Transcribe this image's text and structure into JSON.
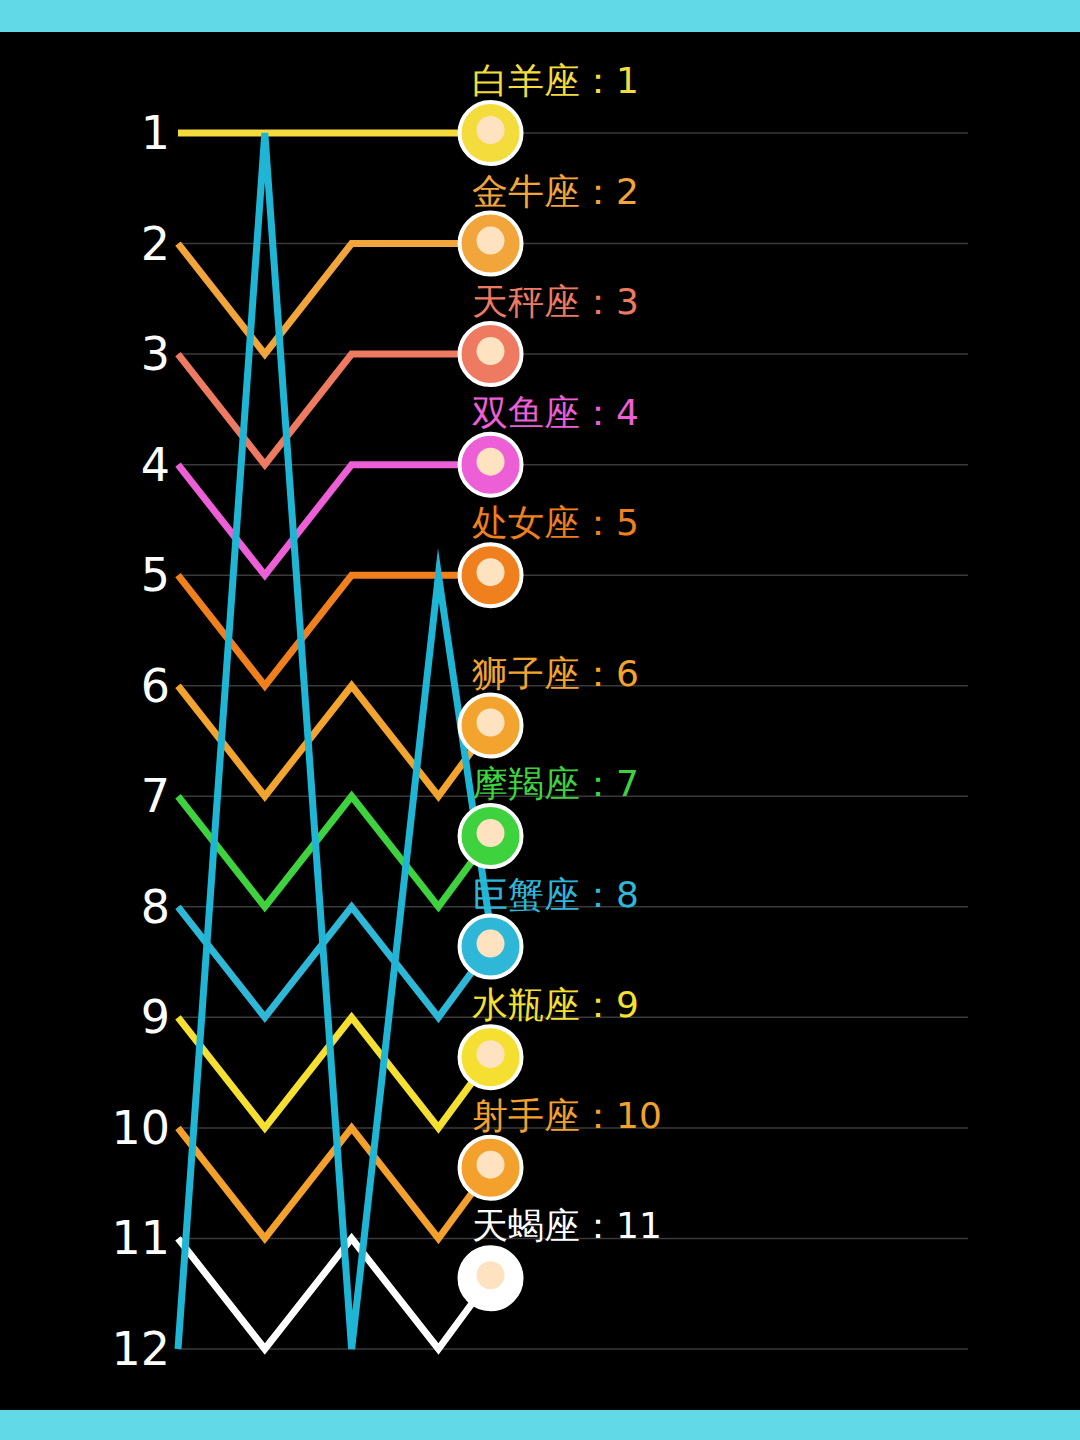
{
  "chart_data": {
    "type": "line",
    "x": [
      0,
      1,
      2,
      3,
      3.6
    ],
    "xlim": [
      0,
      9.1
    ],
    "ylim": [
      12,
      1
    ],
    "yticks": [
      1,
      2,
      3,
      4,
      5,
      6,
      7,
      8,
      9,
      10,
      11,
      12
    ],
    "grid": true,
    "tick_labels": "y",
    "series": [
      {
        "name": "白羊座：1",
        "color": "#f3dc3c",
        "values": [
          1,
          1,
          1,
          1,
          1
        ]
      },
      {
        "name": "金牛座：2",
        "color": "#f2a53a",
        "values": [
          2,
          3,
          2,
          2,
          2
        ]
      },
      {
        "name": "天秤座：3",
        "color": "#ef7a62",
        "values": [
          3,
          4,
          3,
          3,
          3
        ]
      },
      {
        "name": "双鱼座：4",
        "color": "#ec5fd6",
        "values": [
          4,
          5,
          4,
          4,
          4
        ]
      },
      {
        "name": "处女座：5",
        "color": "#f07f1e",
        "values": [
          5,
          6,
          5,
          5,
          5
        ]
      },
      {
        "name": "狮子座：6",
        "color": "#f3a42e",
        "values": [
          6,
          7,
          6,
          7,
          6.36
        ]
      },
      {
        "name": "摩羯座：7",
        "color": "#3fd23f",
        "values": [
          7,
          8,
          7,
          8,
          7.36
        ]
      },
      {
        "name": "巨蟹座：8",
        "color": "#2fb7d8",
        "values": [
          8,
          9,
          8,
          9,
          8.36
        ]
      },
      {
        "name": "水瓶座：9",
        "color": "#f5e032",
        "values": [
          9,
          10,
          9,
          10,
          9.36
        ]
      },
      {
        "name": "射手座：10",
        "color": "#f4a02c",
        "values": [
          10,
          11,
          10,
          11,
          10.36
        ]
      },
      {
        "name": "天蝎座：11",
        "color": "#ffffff",
        "values": [
          11,
          12,
          11,
          12,
          11.36
        ]
      },
      {
        "color": "#1fb6d6",
        "values": [
          12,
          1,
          12,
          5,
          8.2
        ]
      }
    ]
  }
}
